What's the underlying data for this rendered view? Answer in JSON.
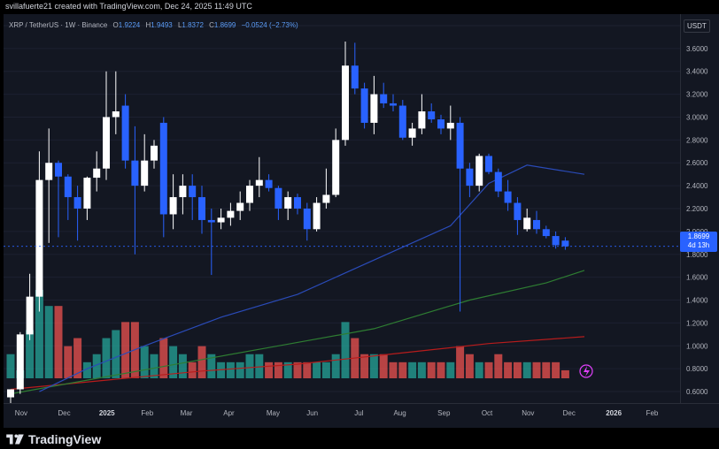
{
  "header": {
    "title": "svillafuerte21 created with TradingView.com, Dec 24, 2025 11:49 UTC"
  },
  "legend": {
    "symbol": "XRP / TetherUS · 1W · Binance",
    "o_label": "O",
    "o_value": "1.9224",
    "h_label": "H",
    "h_value": "1.9493",
    "l_label": "L",
    "l_value": "1.8372",
    "c_label": "C",
    "c_value": "1.8699",
    "change": "−0.0524 (−2.73%)"
  },
  "price_axis": {
    "currency": "USDT",
    "ticks": [
      "3.8000",
      "3.6000",
      "3.4000",
      "3.2000",
      "3.0000",
      "2.8000",
      "2.6000",
      "2.4000",
      "2.2000",
      "2.0000",
      "1.8000",
      "1.6000",
      "1.4000",
      "1.2000",
      "1.0000",
      "0.8000",
      "0.6000"
    ],
    "last_price": "1.8699",
    "countdown": "4d 13h"
  },
  "time_axis": {
    "labels": [
      "Nov",
      "Dec",
      "2025",
      "Feb",
      "Mar",
      "Apr",
      "May",
      "Jun",
      "Jul",
      "Aug",
      "Sep",
      "Oct",
      "Nov",
      "Dec",
      "2026",
      "Feb"
    ]
  },
  "footer": {
    "brand": "TradingView"
  },
  "colors": {
    "background": "#131722",
    "bull": "#ffffff",
    "bear": "#2962ff",
    "vol_bull": "#26a69a",
    "vol_bear": "#ef5350",
    "ma_blue": "#2a4bb8",
    "ma_green": "#2e7d32",
    "ma_red": "#b71c1c"
  },
  "chart_data": {
    "type": "candlestick",
    "title": "XRP / TetherUS · 1W · Binance",
    "ylabel": "USDT",
    "ylim": [
      0.5,
      3.9
    ],
    "candles": [
      {
        "o": 0.55,
        "h": 0.62,
        "l": 0.5,
        "c": 0.62
      },
      {
        "o": 0.62,
        "h": 1.12,
        "l": 0.58,
        "c": 1.1
      },
      {
        "o": 1.1,
        "h": 1.63,
        "l": 1.05,
        "c": 1.43
      },
      {
        "o": 1.43,
        "h": 2.7,
        "l": 1.3,
        "c": 2.45
      },
      {
        "o": 2.45,
        "h": 2.9,
        "l": 1.9,
        "c": 2.6
      },
      {
        "o": 2.6,
        "h": 2.62,
        "l": 1.95,
        "c": 2.48
      },
      {
        "o": 2.48,
        "h": 2.5,
        "l": 2.1,
        "c": 2.3
      },
      {
        "o": 2.3,
        "h": 2.4,
        "l": 1.92,
        "c": 2.2
      },
      {
        "o": 2.2,
        "h": 2.48,
        "l": 2.1,
        "c": 2.47
      },
      {
        "o": 2.47,
        "h": 2.7,
        "l": 2.35,
        "c": 2.55
      },
      {
        "o": 2.55,
        "h": 3.4,
        "l": 2.45,
        "c": 3.0
      },
      {
        "o": 3.0,
        "h": 3.4,
        "l": 2.85,
        "c": 3.05
      },
      {
        "o": 3.1,
        "h": 3.2,
        "l": 2.55,
        "c": 2.62
      },
      {
        "o": 2.62,
        "h": 2.92,
        "l": 1.8,
        "c": 2.4
      },
      {
        "o": 2.4,
        "h": 2.85,
        "l": 2.35,
        "c": 2.62
      },
      {
        "o": 2.62,
        "h": 2.8,
        "l": 2.55,
        "c": 2.75
      },
      {
        "o": 2.95,
        "h": 3.0,
        "l": 1.95,
        "c": 2.15
      },
      {
        "o": 2.15,
        "h": 2.5,
        "l": 2.02,
        "c": 2.3
      },
      {
        "o": 2.3,
        "h": 2.5,
        "l": 2.15,
        "c": 2.4
      },
      {
        "o": 2.4,
        "h": 2.5,
        "l": 2.1,
        "c": 2.3
      },
      {
        "o": 2.3,
        "h": 2.4,
        "l": 1.98,
        "c": 2.1
      },
      {
        "o": 2.1,
        "h": 2.2,
        "l": 1.62,
        "c": 2.08
      },
      {
        "o": 2.08,
        "h": 2.2,
        "l": 2.02,
        "c": 2.12
      },
      {
        "o": 2.12,
        "h": 2.25,
        "l": 2.05,
        "c": 2.18
      },
      {
        "o": 2.18,
        "h": 2.35,
        "l": 2.1,
        "c": 2.25
      },
      {
        "o": 2.25,
        "h": 2.45,
        "l": 2.18,
        "c": 2.4
      },
      {
        "o": 2.4,
        "h": 2.65,
        "l": 2.3,
        "c": 2.45
      },
      {
        "o": 2.45,
        "h": 2.5,
        "l": 2.35,
        "c": 2.38
      },
      {
        "o": 2.38,
        "h": 2.4,
        "l": 2.1,
        "c": 2.2
      },
      {
        "o": 2.2,
        "h": 2.35,
        "l": 2.1,
        "c": 2.3
      },
      {
        "o": 2.3,
        "h": 2.33,
        "l": 2.15,
        "c": 2.2
      },
      {
        "o": 2.2,
        "h": 2.25,
        "l": 1.92,
        "c": 2.02
      },
      {
        "o": 2.02,
        "h": 2.3,
        "l": 2.0,
        "c": 2.25
      },
      {
        "o": 2.25,
        "h": 2.55,
        "l": 2.2,
        "c": 2.32
      },
      {
        "o": 2.32,
        "h": 2.9,
        "l": 2.3,
        "c": 2.8
      },
      {
        "o": 2.8,
        "h": 3.66,
        "l": 2.75,
        "c": 3.45
      },
      {
        "o": 3.45,
        "h": 3.65,
        "l": 3.2,
        "c": 3.25
      },
      {
        "o": 3.25,
        "h": 3.3,
        "l": 2.9,
        "c": 2.95
      },
      {
        "o": 2.95,
        "h": 3.36,
        "l": 2.85,
        "c": 3.2
      },
      {
        "o": 3.2,
        "h": 3.3,
        "l": 3.08,
        "c": 3.12
      },
      {
        "o": 3.12,
        "h": 3.2,
        "l": 3.05,
        "c": 3.1
      },
      {
        "o": 3.1,
        "h": 3.15,
        "l": 2.8,
        "c": 2.82
      },
      {
        "o": 2.82,
        "h": 2.95,
        "l": 2.75,
        "c": 2.9
      },
      {
        "o": 2.9,
        "h": 3.2,
        "l": 2.85,
        "c": 3.05
      },
      {
        "o": 3.05,
        "h": 3.12,
        "l": 2.95,
        "c": 2.98
      },
      {
        "o": 2.98,
        "h": 3.02,
        "l": 2.85,
        "c": 2.9
      },
      {
        "o": 2.9,
        "h": 3.1,
        "l": 2.8,
        "c": 2.95
      },
      {
        "o": 2.95,
        "h": 3.0,
        "l": 1.3,
        "c": 2.55
      },
      {
        "o": 2.55,
        "h": 2.6,
        "l": 2.3,
        "c": 2.4
      },
      {
        "o": 2.4,
        "h": 2.68,
        "l": 2.35,
        "c": 2.66
      },
      {
        "o": 2.66,
        "h": 2.68,
        "l": 2.5,
        "c": 2.52
      },
      {
        "o": 2.52,
        "h": 2.55,
        "l": 2.3,
        "c": 2.35
      },
      {
        "o": 2.35,
        "h": 2.45,
        "l": 2.18,
        "c": 2.25
      },
      {
        "o": 2.25,
        "h": 2.3,
        "l": 1.97,
        "c": 2.1
      },
      {
        "o": 2.02,
        "h": 2.2,
        "l": 2.0,
        "c": 2.12
      },
      {
        "o": 2.1,
        "h": 2.18,
        "l": 1.98,
        "c": 2.02
      },
      {
        "o": 2.02,
        "h": 2.05,
        "l": 1.94,
        "c": 1.96
      },
      {
        "o": 1.96,
        "h": 2.0,
        "l": 1.85,
        "c": 1.88
      },
      {
        "o": 1.92,
        "h": 1.95,
        "l": 1.84,
        "c": 1.87
      }
    ],
    "volume": [
      3,
      1,
      6,
      11,
      9,
      9,
      4,
      5,
      2,
      3,
      5,
      6,
      7,
      7,
      4,
      3,
      5,
      4,
      3,
      2,
      4,
      3,
      2,
      2,
      2,
      3,
      3,
      2,
      2,
      2,
      2,
      2,
      2,
      2,
      3,
      7,
      5,
      3,
      3,
      3,
      2,
      2,
      2,
      2,
      2,
      2,
      2,
      4,
      3,
      2,
      2,
      3,
      2,
      2,
      2,
      2,
      2,
      2,
      1
    ],
    "volume_bull": [
      true,
      true,
      true,
      true,
      true,
      false,
      false,
      false,
      true,
      true,
      true,
      true,
      false,
      false,
      true,
      true,
      false,
      true,
      true,
      false,
      false,
      true,
      true,
      true,
      true,
      true,
      true,
      false,
      false,
      true,
      false,
      false,
      true,
      true,
      true,
      true,
      false,
      false,
      true,
      false,
      false,
      false,
      true,
      true,
      false,
      false,
      true,
      false,
      false,
      true,
      false,
      false,
      false,
      false,
      true,
      false,
      false,
      false,
      false
    ],
    "ma_blue": [
      [
        3,
        0.6
      ],
      [
        8,
        0.8
      ],
      [
        14,
        1.0
      ],
      [
        22,
        1.25
      ],
      [
        30,
        1.45
      ],
      [
        38,
        1.75
      ],
      [
        46,
        2.05
      ],
      [
        50,
        2.42
      ],
      [
        54,
        2.58
      ],
      [
        60,
        2.5
      ]
    ],
    "ma_green": [
      [
        0,
        0.58
      ],
      [
        8,
        0.7
      ],
      [
        18,
        0.85
      ],
      [
        28,
        1.0
      ],
      [
        38,
        1.15
      ],
      [
        48,
        1.4
      ],
      [
        56,
        1.55
      ],
      [
        60,
        1.66
      ]
    ],
    "ma_red": [
      [
        0,
        0.62
      ],
      [
        10,
        0.7
      ],
      [
        20,
        0.78
      ],
      [
        30,
        0.84
      ],
      [
        40,
        0.93
      ],
      [
        50,
        1.02
      ],
      [
        60,
        1.08
      ]
    ],
    "time_labels": [
      "Nov",
      "Dec",
      "2025",
      "Feb",
      "Mar",
      "Apr",
      "May",
      "Jun",
      "Jul",
      "Aug",
      "Sep",
      "Oct",
      "Nov",
      "Dec",
      "2026",
      "Feb"
    ]
  }
}
